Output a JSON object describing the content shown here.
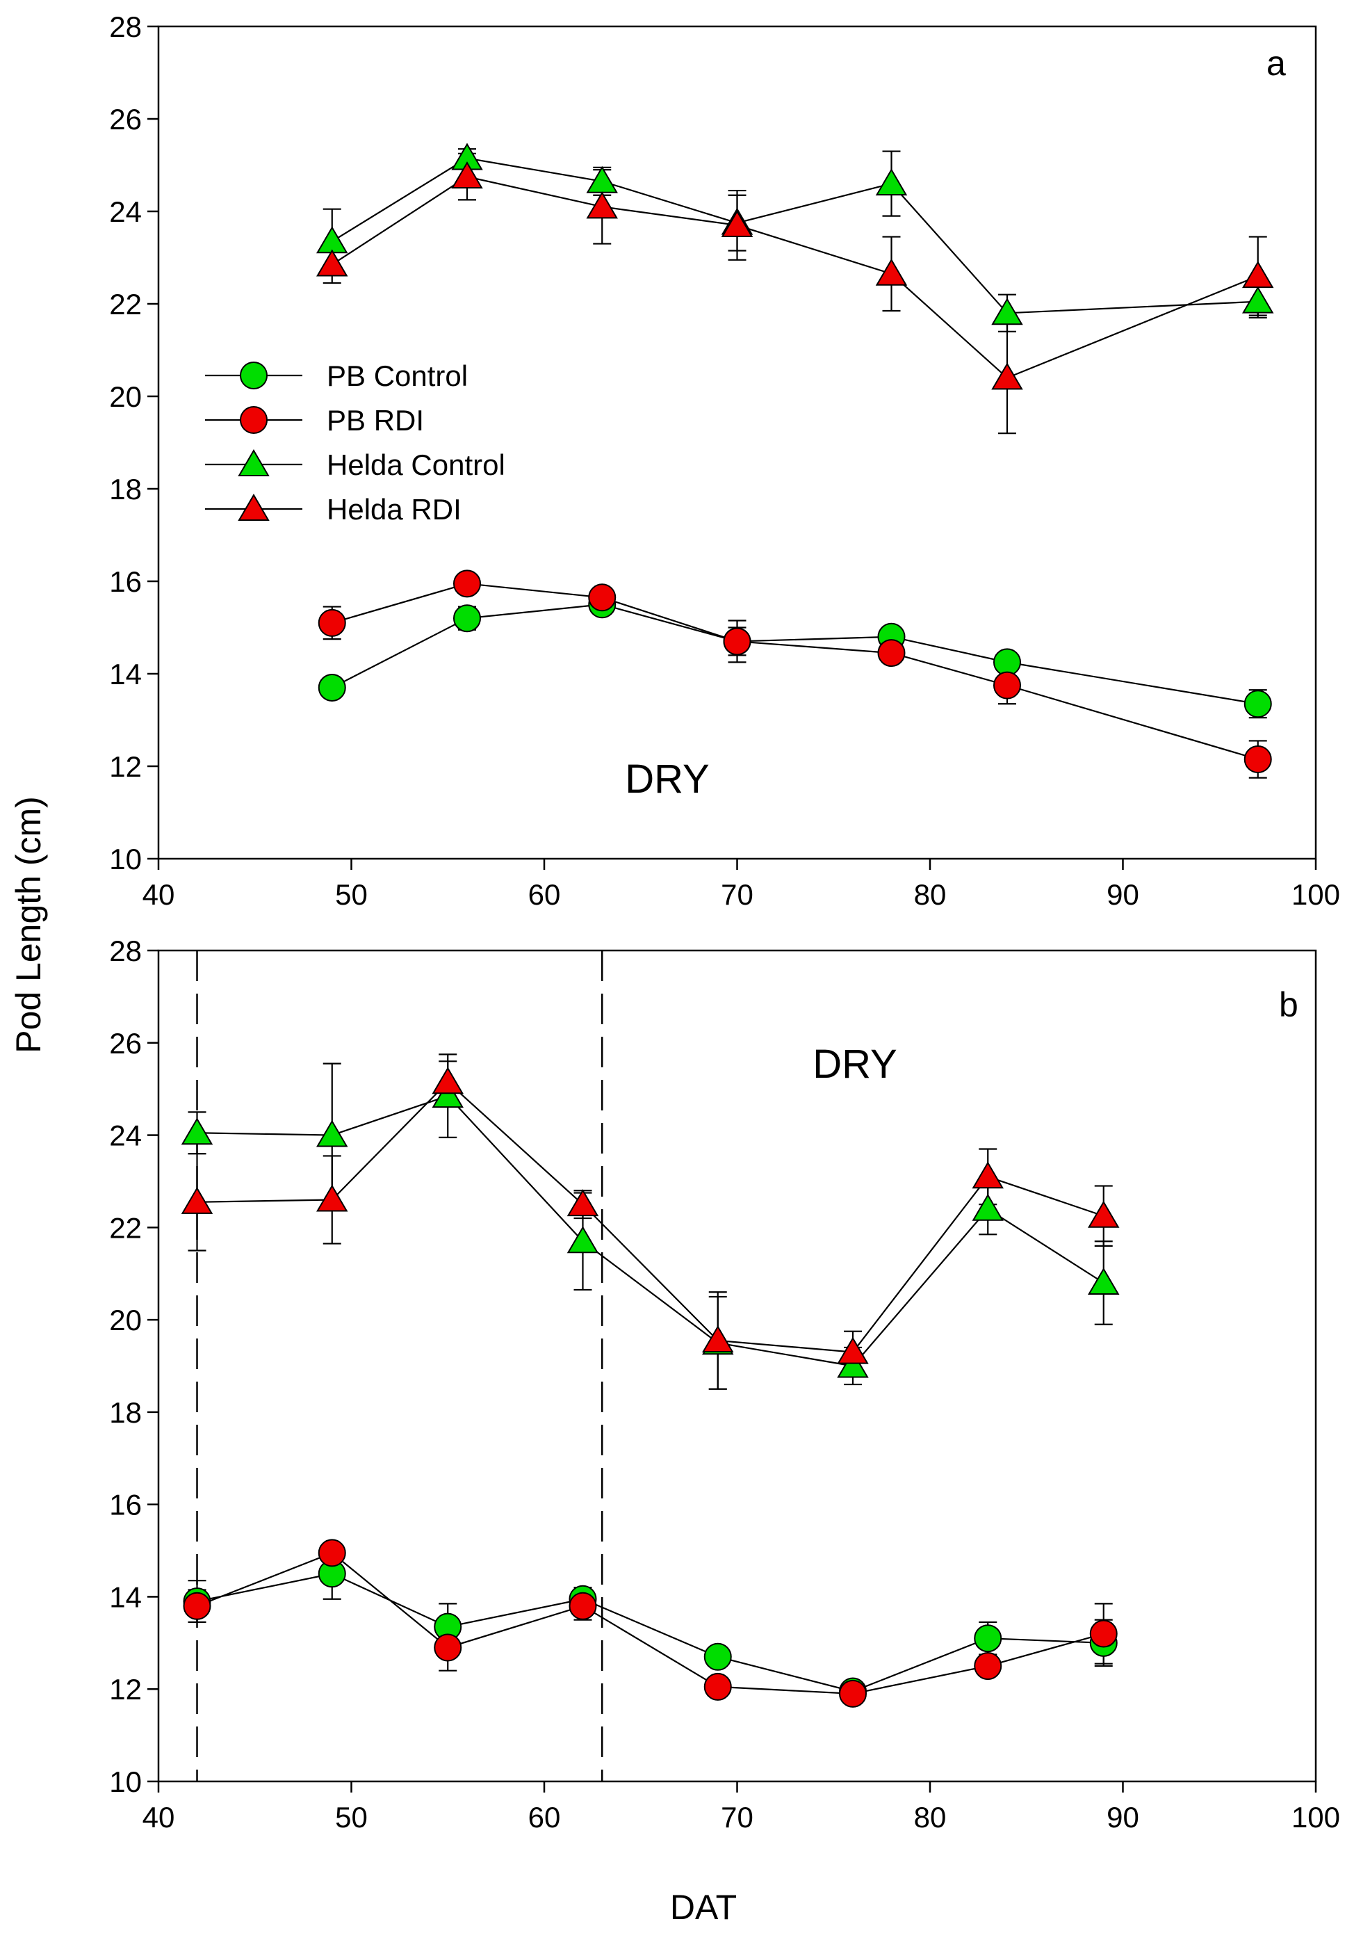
{
  "figure": {
    "ylabel": "Pod Length (cm)",
    "xlabel": "DAT"
  },
  "legend": [
    {
      "label": "PB Control",
      "marker": "circle",
      "color": "#00dd00"
    },
    {
      "label": "PB RDI",
      "marker": "circle",
      "color": "#ee0000"
    },
    {
      "label": "Helda Control",
      "marker": "triangle",
      "color": "#00dd00"
    },
    {
      "label": "Helda RDI",
      "marker": "triangle",
      "color": "#ee0000"
    }
  ],
  "chart_data": [
    {
      "type": "line",
      "panel": "a",
      "annotation": "DRY",
      "xlim": [
        40,
        100
      ],
      "ylim": [
        10,
        28
      ],
      "xticks": [
        40,
        50,
        60,
        70,
        80,
        90,
        100
      ],
      "yticks": [
        10,
        12,
        14,
        16,
        18,
        20,
        22,
        24,
        26,
        28
      ],
      "vlines": [],
      "series": [
        {
          "name": "PB Control",
          "marker": "circle",
          "color": "#00dd00",
          "x": [
            49,
            56,
            63,
            70,
            78,
            84,
            97
          ],
          "y": [
            13.7,
            15.2,
            15.5,
            14.7,
            14.8,
            14.25,
            13.35
          ],
          "err": [
            0.15,
            0.25,
            0.15,
            0.3,
            0.15,
            0.2,
            0.3
          ]
        },
        {
          "name": "PB RDI",
          "marker": "circle",
          "color": "#ee0000",
          "x": [
            49,
            56,
            63,
            70,
            78,
            84,
            97
          ],
          "y": [
            15.1,
            15.95,
            15.65,
            14.7,
            14.45,
            13.75,
            12.15
          ],
          "err": [
            0.35,
            0.15,
            0.15,
            0.45,
            0.15,
            0.4,
            0.4
          ]
        },
        {
          "name": "Helda Control",
          "marker": "triangle",
          "color": "#00dd00",
          "x": [
            49,
            56,
            63,
            70,
            78,
            84,
            97
          ],
          "y": [
            23.35,
            25.15,
            24.65,
            23.75,
            24.6,
            21.8,
            22.05
          ],
          "err": [
            0.7,
            0.2,
            0.3,
            0.6,
            0.7,
            0.4,
            0.35
          ]
        },
        {
          "name": "Helda RDI",
          "marker": "triangle",
          "color": "#ee0000",
          "x": [
            49,
            56,
            63,
            70,
            78,
            84,
            97
          ],
          "y": [
            22.85,
            24.75,
            24.1,
            23.7,
            22.65,
            20.4,
            22.6
          ],
          "err": [
            0.4,
            0.5,
            0.8,
            0.75,
            0.8,
            1.2,
            0.85
          ]
        }
      ]
    },
    {
      "type": "line",
      "panel": "b",
      "annotation": "DRY",
      "xlim": [
        40,
        100
      ],
      "ylim": [
        10,
        28
      ],
      "xticks": [
        40,
        50,
        60,
        70,
        80,
        90,
        100
      ],
      "yticks": [
        10,
        12,
        14,
        16,
        18,
        20,
        22,
        24,
        26,
        28
      ],
      "vlines": [
        42,
        63
      ],
      "series": [
        {
          "name": "PB Control",
          "marker": "circle",
          "color": "#00dd00",
          "x": [
            42,
            49,
            55,
            62,
            69,
            76,
            83,
            89
          ],
          "y": [
            13.9,
            14.5,
            13.35,
            13.95,
            12.7,
            11.95,
            13.1,
            13.0
          ],
          "err": [
            0.45,
            0.55,
            0.5,
            0.25,
            0.2,
            0.2,
            0.35,
            0.5
          ]
        },
        {
          "name": "PB RDI",
          "marker": "circle",
          "color": "#ee0000",
          "x": [
            42,
            49,
            55,
            62,
            69,
            76,
            83,
            89
          ],
          "y": [
            13.8,
            14.95,
            12.9,
            13.8,
            12.05,
            11.9,
            12.5,
            13.2
          ],
          "err": [
            0.35,
            0.2,
            0.5,
            0.3,
            0.15,
            0.2,
            0.2,
            0.65
          ]
        },
        {
          "name": "Helda Control",
          "marker": "triangle",
          "color": "#00dd00",
          "x": [
            42,
            49,
            55,
            62,
            69,
            76,
            83,
            89
          ],
          "y": [
            24.05,
            24.0,
            24.85,
            21.7,
            19.5,
            19.0,
            22.4,
            20.8
          ],
          "err": [
            0.45,
            1.55,
            0.9,
            1.05,
            1.0,
            0.4,
            0.55,
            0.9
          ]
        },
        {
          "name": "Helda RDI",
          "marker": "triangle",
          "color": "#ee0000",
          "x": [
            42,
            49,
            55,
            62,
            69,
            76,
            83,
            89
          ],
          "y": [
            22.55,
            22.6,
            25.15,
            22.5,
            19.55,
            19.3,
            23.1,
            22.25
          ],
          "err": [
            1.05,
            0.95,
            0.45,
            0.3,
            1.05,
            0.45,
            0.6,
            0.65
          ]
        }
      ]
    }
  ]
}
